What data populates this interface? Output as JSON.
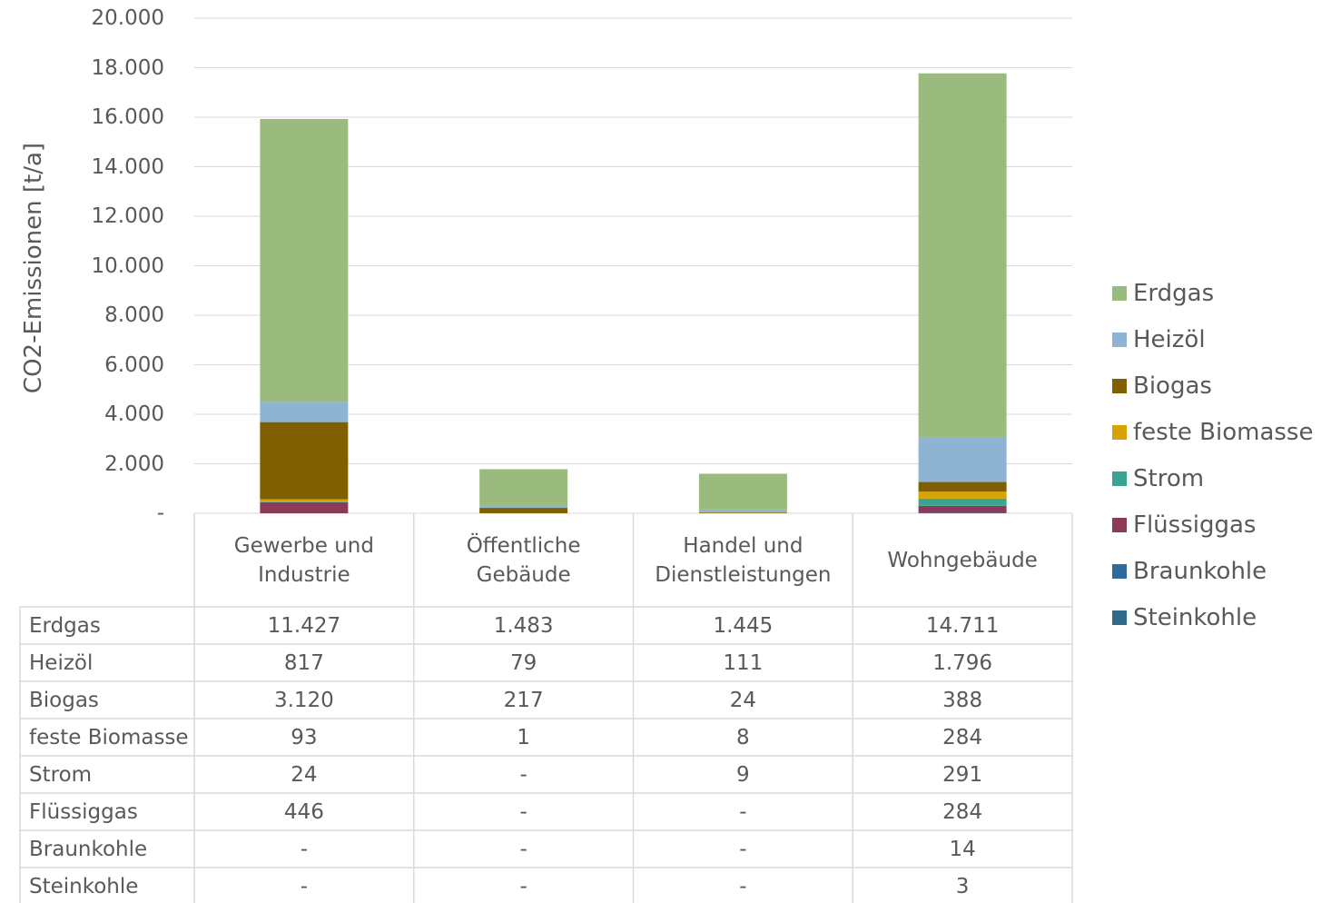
{
  "chart_data": {
    "type": "stacked_bar",
    "y_label": "CO2-Emissionen [t/a]",
    "categories": [
      "Gewerbe und Industrie",
      "Öffentliche Gebäude",
      "Handel und Dienstleistungen",
      "Wohngebäude"
    ],
    "series": [
      {
        "name": "Erdgas",
        "color": "#9bbb7e",
        "values": [
          11427,
          1483,
          1445,
          14711
        ],
        "value_labels": [
          "11.427",
          "1.483",
          "1.445",
          "14.711"
        ]
      },
      {
        "name": "Heizöl",
        "color": "#8fb4d3",
        "values": [
          817,
          79,
          111,
          1796
        ],
        "value_labels": [
          "817",
          "79",
          "111",
          "1.796"
        ]
      },
      {
        "name": "Biogas",
        "color": "#7f5f00",
        "values": [
          3120,
          217,
          24,
          388
        ],
        "value_labels": [
          "3.120",
          "217",
          "24",
          "388"
        ]
      },
      {
        "name": "feste Biomasse",
        "color": "#d8a300",
        "values": [
          93,
          1,
          8,
          284
        ],
        "value_labels": [
          "93",
          "1",
          "8",
          "284"
        ]
      },
      {
        "name": "Strom",
        "color": "#3aa58e",
        "values": [
          24,
          0,
          9,
          291
        ],
        "value_labels": [
          "24",
          "-",
          "9",
          "291"
        ]
      },
      {
        "name": "Flüssiggas",
        "color": "#8b3a57",
        "values": [
          446,
          0,
          0,
          284
        ],
        "value_labels": [
          "446",
          "-",
          "-",
          "284"
        ]
      },
      {
        "name": "Braunkohle",
        "color": "#2e6aa0",
        "values": [
          0,
          0,
          0,
          14
        ],
        "value_labels": [
          "-",
          "-",
          "-",
          "14"
        ]
      },
      {
        "name": "Steinkohle",
        "color": "#2f6a8c",
        "values": [
          0,
          0,
          0,
          3
        ],
        "value_labels": [
          "-",
          "-",
          "-",
          "3"
        ]
      }
    ],
    "ylim": [
      0,
      20000
    ],
    "yticks": [
      {
        "value": 0,
        "label": "-"
      },
      {
        "value": 2000,
        "label": "2.000"
      },
      {
        "value": 4000,
        "label": "4.000"
      },
      {
        "value": 6000,
        "label": "6.000"
      },
      {
        "value": 8000,
        "label": "8.000"
      },
      {
        "value": 10000,
        "label": "10.000"
      },
      {
        "value": 12000,
        "label": "12.000"
      },
      {
        "value": 14000,
        "label": "14.000"
      },
      {
        "value": 16000,
        "label": "16.000"
      },
      {
        "value": 18000,
        "label": "18.000"
      },
      {
        "value": 20000,
        "label": "20.000"
      }
    ],
    "grid": true,
    "legend": "right"
  }
}
